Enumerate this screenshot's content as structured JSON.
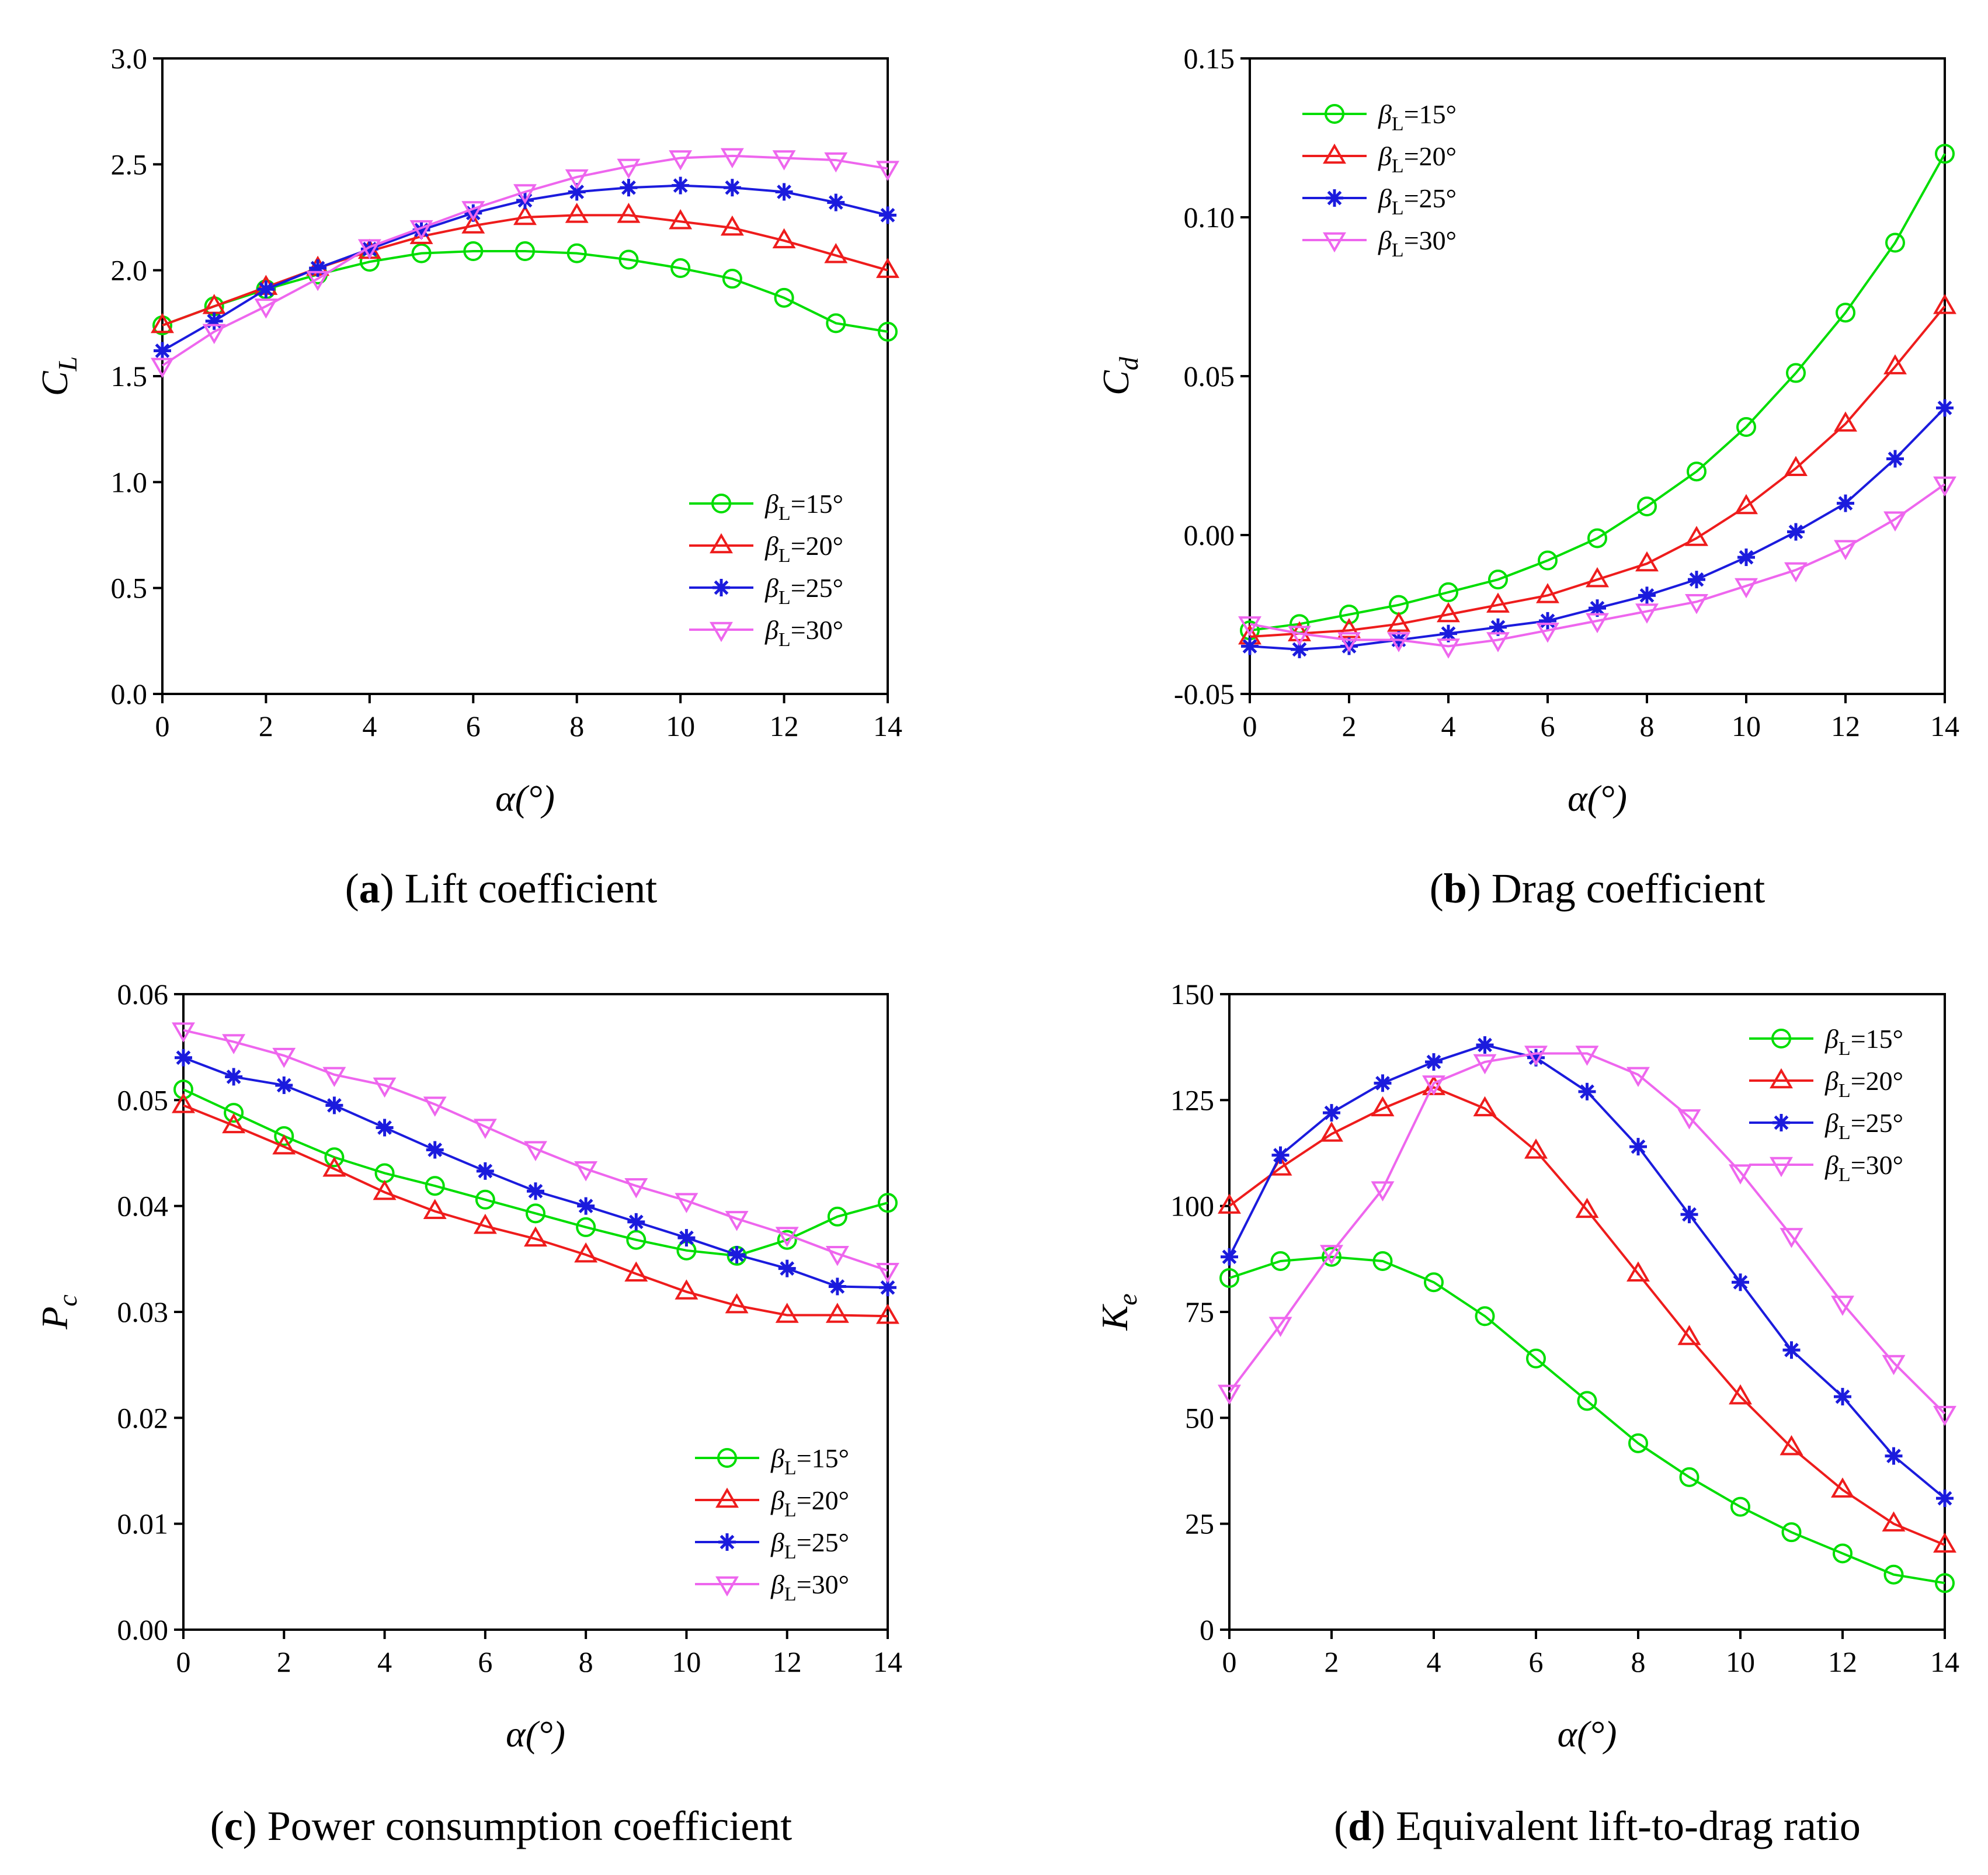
{
  "legend_prefix": "β",
  "legend_subscript": "L",
  "colors": [
    "#00dd00",
    "#ee1c1c",
    "#1b1bdd",
    "#ee66ee"
  ],
  "markers": [
    "circle",
    "triangle-up",
    "star",
    "triangle-down"
  ],
  "chart_data": [
    {
      "id": "a",
      "type": "line",
      "caption": {
        "letter": "a",
        "text": " Lift coefficient"
      },
      "xlabel": "α(°)",
      "ylabel_main": "C",
      "ylabel_sub": "L",
      "xlim": [
        0,
        14
      ],
      "ylim": [
        0,
        3
      ],
      "xticks": [
        "0",
        "2",
        "4",
        "6",
        "8",
        "10",
        "12",
        "14"
      ],
      "yticks": [
        "0.0",
        "0.5",
        "1.0",
        "1.5",
        "2.0",
        "2.5",
        "3.0"
      ],
      "legend_position": "bottom-right",
      "x": [
        0,
        1,
        2,
        3,
        4,
        5,
        6,
        7,
        8,
        9,
        10,
        11,
        12,
        13,
        14
      ],
      "series": [
        {
          "name": "=15°",
          "values": [
            1.74,
            1.83,
            1.91,
            1.98,
            2.04,
            2.08,
            2.09,
            2.09,
            2.08,
            2.05,
            2.01,
            1.96,
            1.87,
            1.75,
            1.71
          ]
        },
        {
          "name": "=20°",
          "values": [
            1.74,
            1.83,
            1.92,
            2.01,
            2.09,
            2.16,
            2.21,
            2.25,
            2.26,
            2.26,
            2.23,
            2.2,
            2.14,
            2.07,
            2.0
          ]
        },
        {
          "name": "=25°",
          "values": [
            1.62,
            1.76,
            1.91,
            2.01,
            2.1,
            2.19,
            2.27,
            2.33,
            2.37,
            2.39,
            2.4,
            2.39,
            2.37,
            2.32,
            2.26
          ]
        },
        {
          "name": "=30°",
          "values": [
            1.55,
            1.71,
            1.83,
            1.96,
            2.11,
            2.2,
            2.29,
            2.37,
            2.44,
            2.49,
            2.53,
            2.54,
            2.53,
            2.52,
            2.48
          ]
        }
      ]
    },
    {
      "id": "b",
      "type": "line",
      "caption": {
        "letter": "b",
        "text": " Drag coefficient"
      },
      "xlabel": "α(°)",
      "ylabel_main": "C",
      "ylabel_sub": "d",
      "xlim": [
        0,
        14
      ],
      "ylim": [
        -0.05,
        0.15
      ],
      "xticks": [
        "0",
        "2",
        "4",
        "6",
        "8",
        "10",
        "12",
        "14"
      ],
      "yticks": [
        "-0.05",
        "0.00",
        "0.05",
        "0.10",
        "0.15"
      ],
      "legend_position": "top-left",
      "x": [
        0,
        1,
        2,
        3,
        4,
        5,
        6,
        7,
        8,
        9,
        10,
        11,
        12,
        13,
        14
      ],
      "series": [
        {
          "name": "=15°",
          "values": [
            -0.03,
            -0.028,
            -0.025,
            -0.022,
            -0.018,
            -0.014,
            -0.008,
            -0.001,
            0.009,
            0.02,
            0.034,
            0.051,
            0.07,
            0.092,
            0.12
          ]
        },
        {
          "name": "=20°",
          "values": [
            -0.032,
            -0.031,
            -0.03,
            -0.028,
            -0.025,
            -0.022,
            -0.019,
            -0.014,
            -0.009,
            -0.001,
            0.009,
            0.021,
            0.035,
            0.053,
            0.072
          ]
        },
        {
          "name": "=25°",
          "values": [
            -0.035,
            -0.036,
            -0.035,
            -0.033,
            -0.031,
            -0.029,
            -0.027,
            -0.023,
            -0.019,
            -0.014,
            -0.007,
            0.001,
            0.01,
            0.024,
            0.04
          ]
        },
        {
          "name": "=30°",
          "values": [
            -0.028,
            -0.031,
            -0.033,
            -0.033,
            -0.035,
            -0.033,
            -0.03,
            -0.027,
            -0.024,
            -0.021,
            -0.016,
            -0.011,
            -0.004,
            0.005,
            0.016
          ]
        }
      ]
    },
    {
      "id": "c",
      "type": "line",
      "caption": {
        "letter": "c",
        "text": " Power consumption coefficient"
      },
      "xlabel": "α(°)",
      "ylabel_main": "P",
      "ylabel_sub": "c",
      "xlim": [
        0,
        14
      ],
      "ylim": [
        0,
        0.06
      ],
      "xticks": [
        "0",
        "2",
        "4",
        "6",
        "8",
        "10",
        "12",
        "14"
      ],
      "yticks": [
        "0.00",
        "0.01",
        "0.02",
        "0.03",
        "0.04",
        "0.05",
        "0.06"
      ],
      "legend_position": "bottom-right",
      "x": [
        0,
        1,
        2,
        3,
        4,
        5,
        6,
        7,
        8,
        9,
        10,
        11,
        12,
        13,
        14
      ],
      "series": [
        {
          "name": "=15°",
          "values": [
            0.051,
            0.0488,
            0.0466,
            0.0446,
            0.0431,
            0.0419,
            0.0406,
            0.0393,
            0.038,
            0.0368,
            0.0358,
            0.0353,
            0.0368,
            0.039,
            0.0403
          ]
        },
        {
          "name": "=20°",
          "values": [
            0.0495,
            0.0476,
            0.0456,
            0.0435,
            0.0413,
            0.0395,
            0.0381,
            0.0369,
            0.0354,
            0.0336,
            0.0319,
            0.0306,
            0.0297,
            0.0297,
            0.0296
          ]
        },
        {
          "name": "=25°",
          "values": [
            0.054,
            0.0522,
            0.0514,
            0.0495,
            0.0474,
            0.0453,
            0.0433,
            0.0414,
            0.04,
            0.0385,
            0.037,
            0.0354,
            0.0341,
            0.0324,
            0.0323
          ]
        },
        {
          "name": "=30°",
          "values": [
            0.0566,
            0.0555,
            0.0542,
            0.0524,
            0.0514,
            0.0496,
            0.0475,
            0.0454,
            0.0435,
            0.0419,
            0.0405,
            0.0388,
            0.0373,
            0.0355,
            0.0339
          ]
        }
      ]
    },
    {
      "id": "d",
      "type": "line",
      "caption": {
        "letter": "d",
        "text": " Equivalent lift-to-drag ratio"
      },
      "xlabel": "α(°)",
      "ylabel_main": "K",
      "ylabel_sub": "e",
      "xlim": [
        0,
        14
      ],
      "ylim": [
        0,
        150
      ],
      "xticks": [
        "0",
        "2",
        "4",
        "6",
        "8",
        "10",
        "12",
        "14"
      ],
      "yticks": [
        "0",
        "25",
        "50",
        "75",
        "100",
        "125",
        "150"
      ],
      "legend_position": "top-right",
      "x": [
        0,
        1,
        2,
        3,
        4,
        5,
        6,
        7,
        8,
        9,
        10,
        11,
        12,
        13,
        14
      ],
      "series": [
        {
          "name": "=15°",
          "values": [
            83,
            87,
            88,
            87,
            82,
            74,
            64,
            54,
            44,
            36,
            29,
            23,
            18,
            13,
            11
          ]
        },
        {
          "name": "=20°",
          "values": [
            100,
            109,
            117,
            123,
            128,
            123,
            113,
            99,
            84,
            69,
            55,
            43,
            33,
            25,
            20
          ]
        },
        {
          "name": "=25°",
          "values": [
            88,
            112,
            122,
            129,
            134,
            138,
            135,
            127,
            114,
            98,
            82,
            66,
            55,
            41,
            31
          ]
        },
        {
          "name": "=30°",
          "values": [
            56,
            72,
            89,
            104,
            129,
            134,
            136,
            136,
            131,
            121,
            108,
            93,
            77,
            63,
            51
          ]
        }
      ]
    }
  ]
}
